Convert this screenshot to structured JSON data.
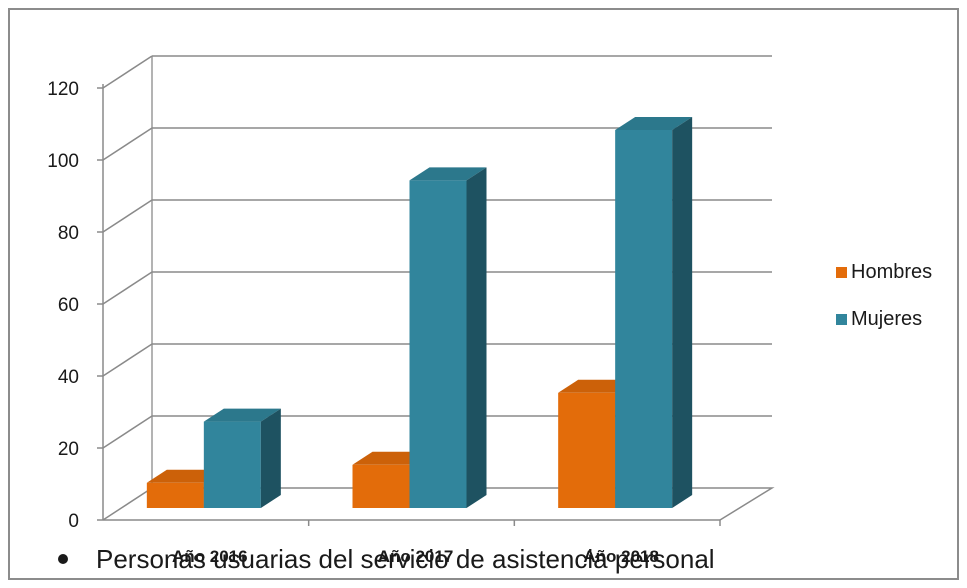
{
  "chart_data": {
    "type": "bar",
    "categories": [
      "Año 2016",
      "Año 2017",
      "Año 2018"
    ],
    "series": [
      {
        "name": "Hombres",
        "values": [
          7,
          12,
          32
        ],
        "color": "#e36c0a"
      },
      {
        "name": "Mujeres",
        "values": [
          24,
          91,
          105
        ],
        "color": "#31859c"
      }
    ],
    "ylim": [
      0,
      120
    ],
    "yticks": [
      0,
      20,
      40,
      60,
      80,
      100,
      120
    ],
    "grid": true,
    "legend_position": "right",
    "style": "3d-clustered-column"
  },
  "caption": "Personas usuarias del servicio de asistencia personal"
}
